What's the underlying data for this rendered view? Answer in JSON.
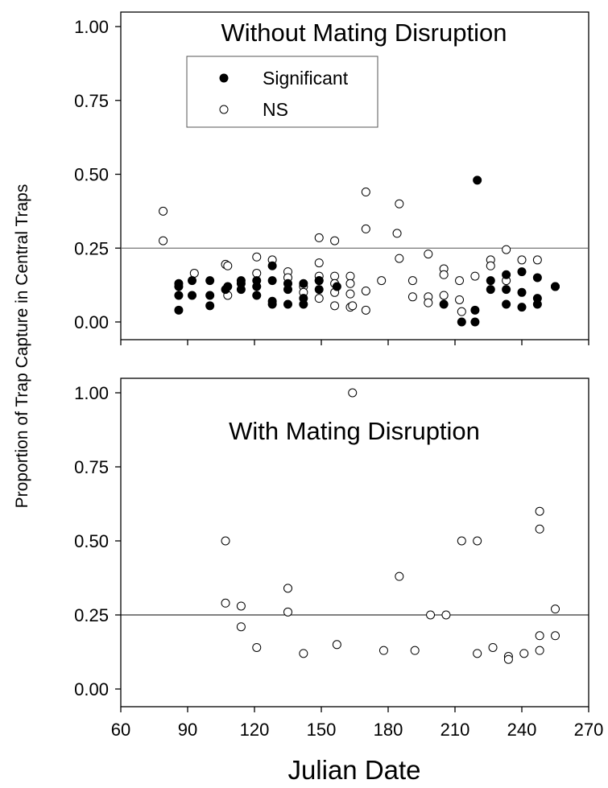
{
  "chart_data": [
    {
      "type": "scatter",
      "title": "Without Mating Disruption",
      "ylabel": "Proportion of Trap Capture in Central Traps",
      "xlim": [
        60,
        270
      ],
      "ylim": [
        0.0,
        1.0
      ],
      "y_ticks": [
        "0.00",
        "0.25",
        "0.50",
        "0.75",
        "1.00"
      ],
      "reference_line_y": 0.25,
      "grid": false,
      "legend": {
        "placement": "top-left-inner",
        "entries": [
          {
            "label": "Significant",
            "marker": "filled-circle"
          },
          {
            "label": "NS",
            "marker": "open-circle"
          }
        ]
      },
      "series": [
        {
          "name": "Significant",
          "marker": "filled",
          "points": [
            [
              86,
              0.04
            ],
            [
              86,
              0.09
            ],
            [
              86,
              0.12
            ],
            [
              86,
              0.13
            ],
            [
              92,
              0.09
            ],
            [
              92,
              0.14
            ],
            [
              100,
              0.055
            ],
            [
              100,
              0.09
            ],
            [
              100,
              0.14
            ],
            [
              107,
              0.11
            ],
            [
              108,
              0.12
            ],
            [
              114,
              0.11
            ],
            [
              114,
              0.13
            ],
            [
              114,
              0.14
            ],
            [
              121,
              0.09
            ],
            [
              121,
              0.12
            ],
            [
              121,
              0.14
            ],
            [
              128,
              0.06
            ],
            [
              128,
              0.07
            ],
            [
              128,
              0.14
            ],
            [
              128,
              0.19
            ],
            [
              135,
              0.06
            ],
            [
              135,
              0.11
            ],
            [
              135,
              0.13
            ],
            [
              142,
              0.06
            ],
            [
              142,
              0.08
            ],
            [
              142,
              0.13
            ],
            [
              149,
              0.11
            ],
            [
              149,
              0.14
            ],
            [
              157,
              0.12
            ],
            [
              205,
              0.06
            ],
            [
              213,
              0.0
            ],
            [
              219,
              0.0
            ],
            [
              219,
              0.04
            ],
            [
              220,
              0.48
            ],
            [
              226,
              0.11
            ],
            [
              226,
              0.14
            ],
            [
              233,
              0.06
            ],
            [
              233,
              0.11
            ],
            [
              233,
              0.16
            ],
            [
              240,
              0.05
            ],
            [
              240,
              0.1
            ],
            [
              240,
              0.17
            ],
            [
              247,
              0.06
            ],
            [
              247,
              0.08
            ],
            [
              247,
              0.15
            ],
            [
              255,
              0.12
            ]
          ]
        },
        {
          "name": "NS",
          "marker": "open",
          "points": [
            [
              79,
              0.375
            ],
            [
              79,
              0.275
            ],
            [
              93,
              0.165
            ],
            [
              107,
              0.195
            ],
            [
              108,
              0.09
            ],
            [
              108,
              0.19
            ],
            [
              121,
              0.22
            ],
            [
              121,
              0.165
            ],
            [
              128,
              0.21
            ],
            [
              135,
              0.17
            ],
            [
              135,
              0.15
            ],
            [
              142,
              0.12
            ],
            [
              142,
              0.1
            ],
            [
              149,
              0.285
            ],
            [
              149,
              0.2
            ],
            [
              149,
              0.155
            ],
            [
              149,
              0.14
            ],
            [
              149,
              0.08
            ],
            [
              156,
              0.275
            ],
            [
              156,
              0.155
            ],
            [
              156,
              0.13
            ],
            [
              156,
              0.1
            ],
            [
              156,
              0.055
            ],
            [
              163,
              0.155
            ],
            [
              163,
              0.13
            ],
            [
              163,
              0.095
            ],
            [
              163,
              0.05
            ],
            [
              164,
              0.055
            ],
            [
              170,
              0.44
            ],
            [
              170,
              0.315
            ],
            [
              170,
              0.105
            ],
            [
              170,
              0.04
            ],
            [
              177,
              0.14
            ],
            [
              184,
              0.3
            ],
            [
              185,
              0.4
            ],
            [
              185,
              0.215
            ],
            [
              191,
              0.14
            ],
            [
              191,
              0.085
            ],
            [
              198,
              0.23
            ],
            [
              198,
              0.085
            ],
            [
              198,
              0.065
            ],
            [
              205,
              0.18
            ],
            [
              205,
              0.16
            ],
            [
              205,
              0.09
            ],
            [
              212,
              0.14
            ],
            [
              212,
              0.075
            ],
            [
              213,
              0.035
            ],
            [
              219,
              0.155
            ],
            [
              226,
              0.21
            ],
            [
              226,
              0.19
            ],
            [
              233,
              0.245
            ],
            [
              233,
              0.14
            ],
            [
              240,
              0.21
            ],
            [
              247,
              0.21
            ],
            [
              255,
              0.12
            ]
          ]
        }
      ]
    },
    {
      "type": "scatter",
      "title": "With Mating Disruption",
      "xlabel": "Julian Date",
      "xlim": [
        60,
        270
      ],
      "ylim": [
        0.0,
        1.0
      ],
      "x_ticks": [
        "60",
        "90",
        "120",
        "150",
        "180",
        "210",
        "240",
        "270"
      ],
      "y_ticks": [
        "0.00",
        "0.25",
        "0.50",
        "0.75",
        "1.00"
      ],
      "reference_line_y": 0.25,
      "grid": false,
      "series": [
        {
          "name": "NS",
          "marker": "open",
          "points": [
            [
              107,
              0.5
            ],
            [
              107,
              0.29
            ],
            [
              114,
              0.28
            ],
            [
              114,
              0.21
            ],
            [
              121,
              0.14
            ],
            [
              135,
              0.34
            ],
            [
              135,
              0.26
            ],
            [
              142,
              0.12
            ],
            [
              157,
              0.15
            ],
            [
              164,
              1.0
            ],
            [
              178,
              0.13
            ],
            [
              185,
              0.38
            ],
            [
              192,
              0.13
            ],
            [
              199,
              0.25
            ],
            [
              206,
              0.25
            ],
            [
              213,
              0.5
            ],
            [
              220,
              0.5
            ],
            [
              220,
              0.12
            ],
            [
              227,
              0.14
            ],
            [
              234,
              0.11
            ],
            [
              234,
              0.1
            ],
            [
              241,
              0.12
            ],
            [
              248,
              0.6
            ],
            [
              248,
              0.54
            ],
            [
              248,
              0.18
            ],
            [
              248,
              0.13
            ],
            [
              255,
              0.27
            ],
            [
              255,
              0.18
            ]
          ]
        }
      ]
    }
  ]
}
